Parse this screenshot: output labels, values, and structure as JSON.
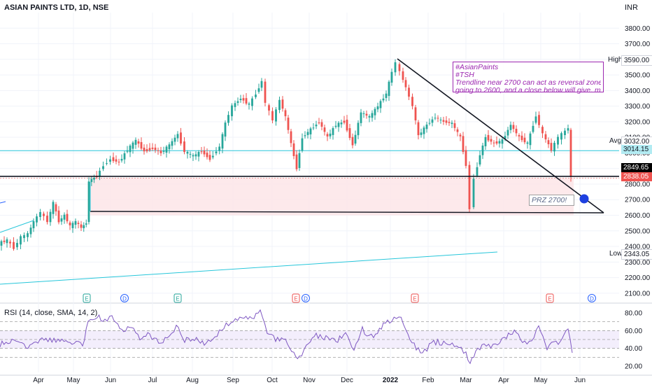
{
  "header": {
    "title": "ASIAN PAINTS LTD, 1D, NSE",
    "currency": "INR"
  },
  "rsi": {
    "title": "RSI (14, close, SMA, 14, 2)",
    "ticks": [
      "80.00",
      "60.00",
      "40.00",
      "20.00"
    ]
  },
  "note": {
    "lines": [
      "#AsianPaints",
      "#TSH",
      "Trendline near 2700 can act as reversal zone. if not",
      "going to 2600, and a close below will give. more pain!"
    ]
  },
  "prz_label": "PRZ 2700!",
  "price_labels": {
    "high_tag": "High",
    "high_value": "3590.00",
    "avg_tag": "Avg",
    "avg_value": "3032.00",
    "low_tag": "Low",
    "low_value": "2343.05",
    "level_value": "3014.15",
    "support_value": "2849.65",
    "last_value": "2838.05"
  },
  "colors": {
    "accent_teal": "#26c6da",
    "up": "#26a69a",
    "down": "#ef5350",
    "rsi": "#7e57c2",
    "note": "#9c27b0"
  },
  "chart_data": {
    "type": "candlestick",
    "title": "ASIAN PAINTS LTD, 1D, NSE",
    "ylim": [
      2050,
      3900
    ],
    "y_ticks": [
      2100,
      2200,
      2300,
      2400,
      2500,
      2600,
      2700,
      2800,
      2900,
      3000,
      3100,
      3200,
      3300,
      3400,
      3500,
      3600,
      3700,
      3800
    ],
    "y_tick_labels": [
      "2100.00",
      "2200.00",
      "2300.00",
      "2400.00",
      "2500.00",
      "2600.00",
      "2700.00",
      "2800.00",
      "2900.00",
      "3000.00",
      "3100.00",
      "3200.00",
      "3300.00",
      "3400.00",
      "3500.00",
      "3600.00",
      "3700.00",
      "3800.00"
    ],
    "x_labels": [
      "Apr",
      "May",
      "Jun",
      "Jul",
      "Aug",
      "Sep",
      "Oct",
      "Nov",
      "Dec",
      "2022",
      "Feb",
      "Mar",
      "Apr",
      "May",
      "Jun"
    ],
    "price_path": [
      [
        0,
        2420
      ],
      [
        12,
        2440
      ],
      [
        22,
        2390
      ],
      [
        32,
        2460
      ],
      [
        42,
        2480
      ],
      [
        50,
        2560
      ],
      [
        60,
        2620
      ],
      [
        70,
        2560
      ],
      [
        78,
        2680
      ],
      [
        86,
        2560
      ],
      [
        94,
        2600
      ],
      [
        102,
        2530
      ],
      [
        110,
        2560
      ],
      [
        118,
        2520
      ],
      [
        125,
        2550
      ],
      [
        129,
        2820
      ],
      [
        140,
        2850
      ],
      [
        150,
        2920
      ],
      [
        160,
        2960
      ],
      [
        172,
        2940
      ],
      [
        184,
        3020
      ],
      [
        196,
        3080
      ],
      [
        208,
        3010
      ],
      [
        220,
        3030
      ],
      [
        232,
        3000
      ],
      [
        244,
        3050
      ],
      [
        256,
        3120
      ],
      [
        266,
        3010
      ],
      [
        278,
        2980
      ],
      [
        290,
        3010
      ],
      [
        302,
        2960
      ],
      [
        316,
        3040
      ],
      [
        324,
        3190
      ],
      [
        334,
        3300
      ],
      [
        346,
        3350
      ],
      [
        358,
        3310
      ],
      [
        368,
        3380
      ],
      [
        376,
        3460
      ],
      [
        382,
        3320
      ],
      [
        392,
        3210
      ],
      [
        402,
        3340
      ],
      [
        410,
        3230
      ],
      [
        418,
        3060
      ],
      [
        426,
        2900
      ],
      [
        434,
        3100
      ],
      [
        446,
        3150
      ],
      [
        458,
        3200
      ],
      [
        470,
        3100
      ],
      [
        482,
        3180
      ],
      [
        494,
        3200
      ],
      [
        506,
        3050
      ],
      [
        518,
        3260
      ],
      [
        530,
        3230
      ],
      [
        542,
        3300
      ],
      [
        554,
        3380
      ],
      [
        562,
        3520
      ],
      [
        568,
        3580
      ],
      [
        574,
        3520
      ],
      [
        582,
        3420
      ],
      [
        592,
        3300
      ],
      [
        600,
        3110
      ],
      [
        612,
        3180
      ],
      [
        624,
        3230
      ],
      [
        636,
        3200
      ],
      [
        648,
        3190
      ],
      [
        660,
        3100
      ],
      [
        668,
        2920
      ],
      [
        674,
        2640
      ],
      [
        680,
        2840
      ],
      [
        688,
        2990
      ],
      [
        696,
        3100
      ],
      [
        708,
        3060
      ],
      [
        720,
        3080
      ],
      [
        732,
        3180
      ],
      [
        744,
        3100
      ],
      [
        756,
        3060
      ],
      [
        768,
        3240
      ],
      [
        778,
        3120
      ],
      [
        790,
        3020
      ],
      [
        800,
        3100
      ],
      [
        810,
        3140
      ],
      [
        814,
        3160
      ],
      [
        818,
        2840
      ]
    ],
    "rsi_path": [
      [
        0,
        45
      ],
      [
        20,
        48
      ],
      [
        40,
        42
      ],
      [
        60,
        52
      ],
      [
        80,
        49
      ],
      [
        100,
        46
      ],
      [
        118,
        44
      ],
      [
        126,
        70
      ],
      [
        136,
        75
      ],
      [
        150,
        73
      ],
      [
        160,
        76
      ],
      [
        174,
        58
      ],
      [
        188,
        64
      ],
      [
        200,
        53
      ],
      [
        214,
        55
      ],
      [
        230,
        47
      ],
      [
        242,
        51
      ],
      [
        252,
        66
      ],
      [
        264,
        49
      ],
      [
        278,
        50
      ],
      [
        292,
        45
      ],
      [
        304,
        52
      ],
      [
        320,
        62
      ],
      [
        330,
        72
      ],
      [
        346,
        76
      ],
      [
        360,
        72
      ],
      [
        372,
        80
      ],
      [
        382,
        56
      ],
      [
        394,
        50
      ],
      [
        408,
        49
      ],
      [
        420,
        36
      ],
      [
        428,
        28
      ],
      [
        438,
        45
      ],
      [
        452,
        55
      ],
      [
        466,
        52
      ],
      [
        480,
        48
      ],
      [
        494,
        55
      ],
      [
        506,
        39
      ],
      [
        518,
        61
      ],
      [
        534,
        52
      ],
      [
        548,
        66
      ],
      [
        560,
        72
      ],
      [
        570,
        78
      ],
      [
        580,
        62
      ],
      [
        592,
        43
      ],
      [
        604,
        35
      ],
      [
        620,
        47
      ],
      [
        640,
        46
      ],
      [
        656,
        42
      ],
      [
        666,
        35
      ],
      [
        672,
        24
      ],
      [
        680,
        36
      ],
      [
        692,
        44
      ],
      [
        708,
        42
      ],
      [
        724,
        53
      ],
      [
        738,
        59
      ],
      [
        750,
        47
      ],
      [
        760,
        48
      ],
      [
        770,
        63
      ],
      [
        782,
        42
      ],
      [
        798,
        47
      ],
      [
        812,
        62
      ],
      [
        818,
        35
      ]
    ],
    "rsi_ylim": [
      13,
      87
    ]
  }
}
